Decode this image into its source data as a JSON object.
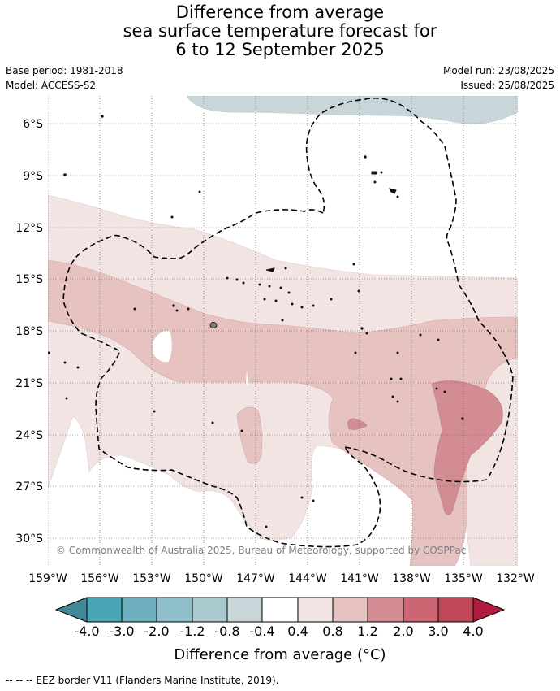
{
  "title": {
    "line1": "Difference from average",
    "line2": "sea surface temperature forecast for",
    "line3": "6 to 12 September 2025"
  },
  "meta": {
    "base_period": "Base period: 1981-2018",
    "model": "Model: ACCESS-S2",
    "model_run": "Model run: 23/08/2025",
    "issued": "Issued: 25/08/2025"
  },
  "map": {
    "lat_labels": [
      "6°S",
      "9°S",
      "12°S",
      "15°S",
      "18°S",
      "21°S",
      "24°S",
      "27°S",
      "30°S"
    ],
    "lon_labels": [
      "159°W",
      "156°W",
      "153°W",
      "150°W",
      "147°W",
      "144°W",
      "141°W",
      "138°W",
      "135°W",
      "132°W"
    ],
    "copyright": "© Commonwealth of Australia 2025, Bureau of Meteorology, supported by COSPPac"
  },
  "colorbar": {
    "tick_labels": [
      "-4.0",
      "-3.0",
      "-2.0",
      "-1.2",
      "-0.8",
      "-0.4",
      "0.4",
      "0.8",
      "1.2",
      "2.0",
      "3.0",
      "4.0"
    ],
    "colors": [
      "#3f8a96",
      "#4aa5b5",
      "#6fb0c0",
      "#8ebfca",
      "#a9c9cf",
      "#c8d6da",
      "#ffffff",
      "#f3e4e4",
      "#e6c3c1",
      "#d48c93",
      "#cc6572",
      "#c04758",
      "#b11d3c"
    ],
    "title": "Difference from average (°C)"
  },
  "footer": "--  --  -- EEZ border V11 (Flanders Marine Institute, 2019)."
}
